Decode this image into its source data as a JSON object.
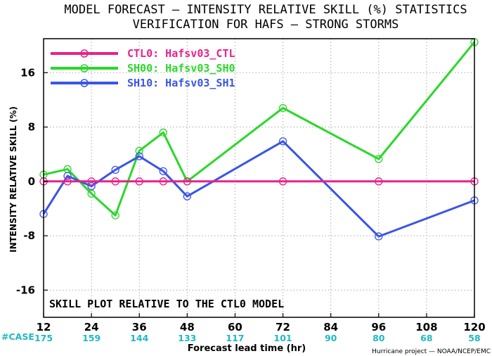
{
  "chart_data": {
    "type": "line",
    "title": "MODEL FORECAST — INTENSITY RELATIVE SKILL (%) STATISTICS",
    "subtitle": "VERIFICATION FOR HAFS — STRONG STORMS",
    "xlabel": "Forecast lead time (hr)",
    "ylabel": "INTENSITY RELATIVE SKILL (%)",
    "xlim": [
      12,
      120
    ],
    "ylim": [
      -20,
      21
    ],
    "xticks": [
      "12",
      "24",
      "36",
      "48",
      "60",
      "72",
      "84",
      "96",
      "108",
      "120"
    ],
    "yticks": [
      "16",
      "8",
      "0",
      "-8",
      "-16"
    ],
    "grid": true,
    "legend_position": "top-left",
    "annotation": "SKILL PLOT RELATIVE TO THE CTL0 MODEL",
    "case_label": "#CASE",
    "case_counts": [
      "175",
      "159",
      "144",
      "133",
      "117",
      "101",
      "90",
      "80",
      "68",
      "58"
    ],
    "credit": "Hurricane project — NOAA/NCEP/EMC",
    "series": [
      {
        "name": "CTL0: Hafsv03_CTL",
        "color": "#e8218a",
        "x": [
          12,
          18,
          24,
          30,
          36,
          42,
          48,
          72,
          96,
          120
        ],
        "y": [
          0,
          0,
          0,
          0,
          0,
          0,
          0,
          0,
          0,
          0
        ]
      },
      {
        "name": "SH00: Hafsv03_SH0",
        "color": "#2ad82a",
        "x": [
          12,
          18,
          24,
          30,
          36,
          42,
          48,
          72,
          96,
          120
        ],
        "y": [
          1.0,
          1.8,
          -1.8,
          -5.0,
          4.5,
          7.2,
          0.0,
          10.8,
          3.3,
          20.5
        ]
      },
      {
        "name": "SH10: Hafsv03_SH1",
        "color": "#3a55e8",
        "x": [
          12,
          18,
          24,
          30,
          36,
          42,
          48,
          72,
          96,
          120
        ],
        "y": [
          -4.8,
          0.8,
          -0.7,
          1.7,
          3.7,
          1.5,
          -2.2,
          5.9,
          -8.1,
          -2.8
        ]
      }
    ]
  }
}
